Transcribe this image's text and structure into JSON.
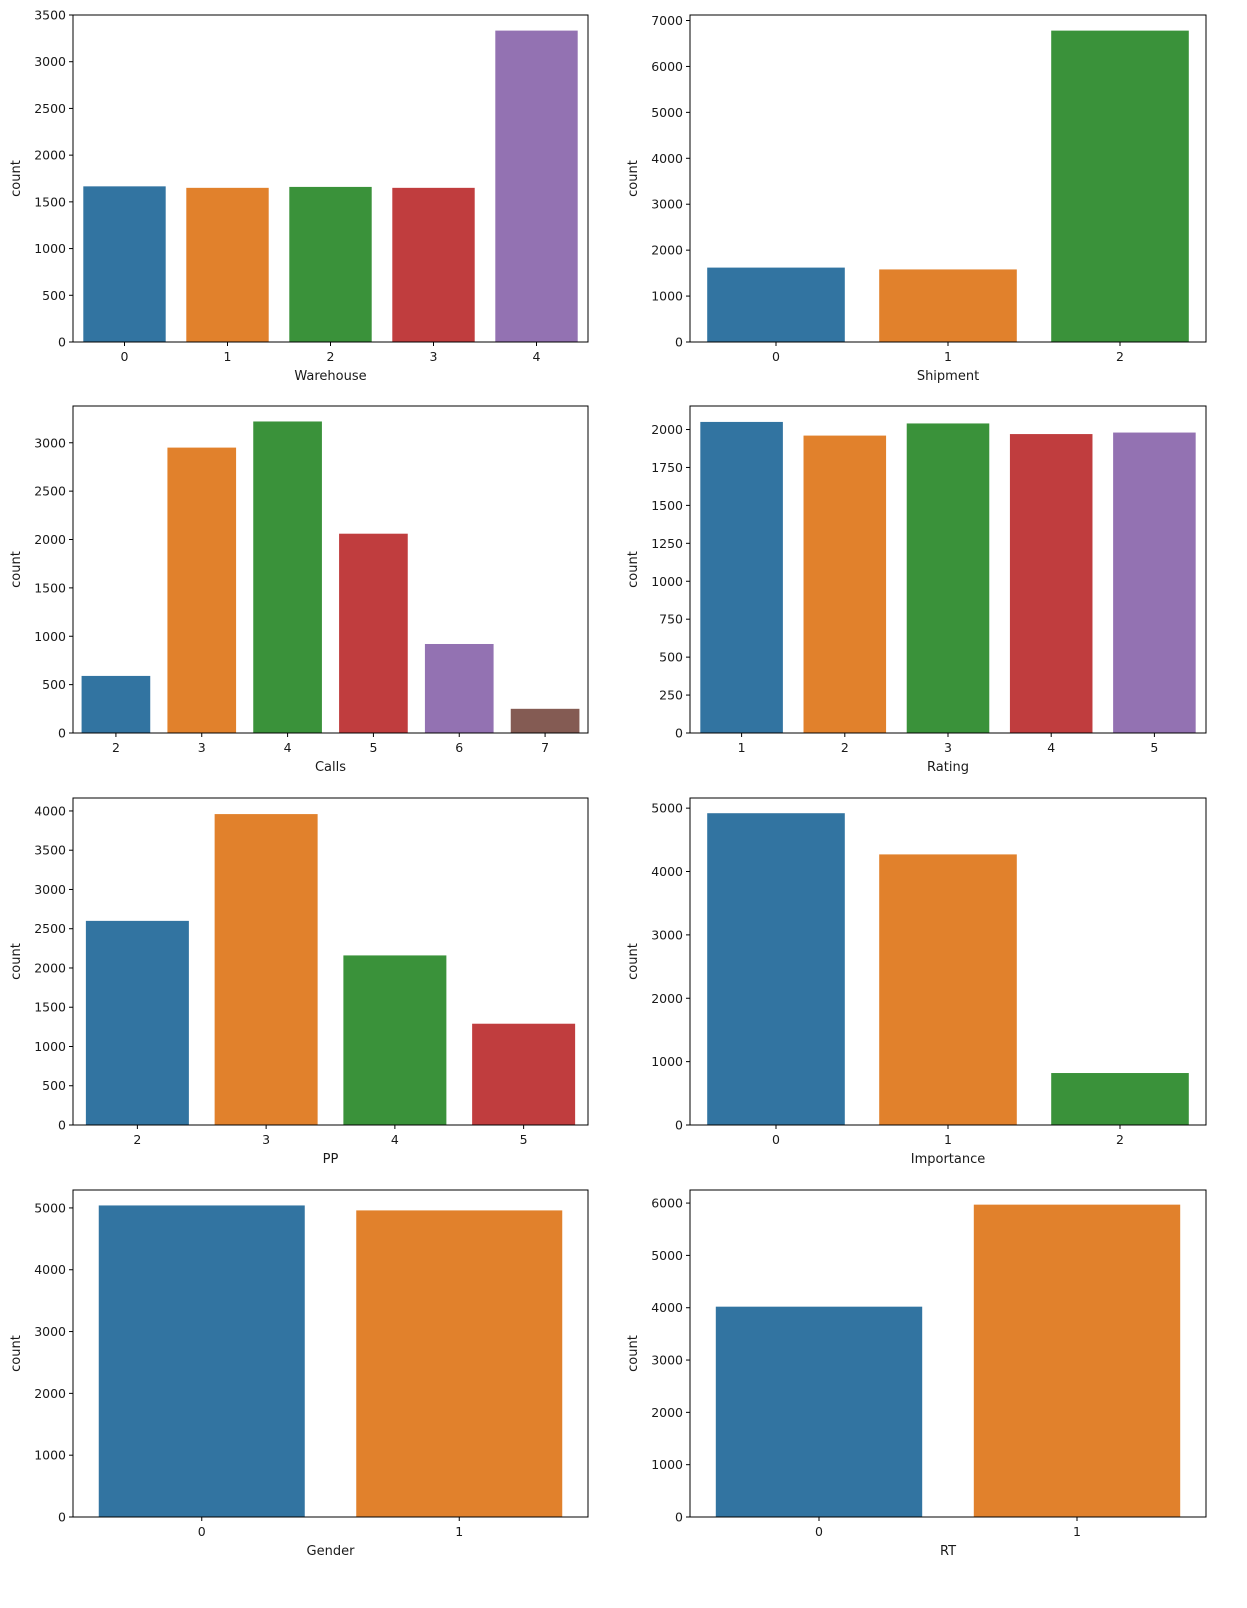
{
  "chart_data": [
    {
      "type": "bar",
      "title": "",
      "xlabel": "Warehouse",
      "ylabel": "count",
      "categories": [
        "0",
        "1",
        "2",
        "3",
        "4"
      ],
      "values": [
        1666,
        1650,
        1660,
        1650,
        3333
      ],
      "ylim": [
        0,
        3500
      ],
      "yticks": [
        0,
        500,
        1000,
        1500,
        2000,
        2500,
        3000,
        3500
      ],
      "grid": false,
      "colors": [
        "#3274a1",
        "#e1812c",
        "#3a923a",
        "#c03d3e",
        "#9372b2"
      ]
    },
    {
      "type": "bar",
      "title": "",
      "xlabel": "Shipment",
      "ylabel": "count",
      "categories": [
        "0",
        "1",
        "2"
      ],
      "values": [
        1620,
        1580,
        6780
      ],
      "ylim": [
        0,
        7120
      ],
      "yticks": [
        0,
        1000,
        2000,
        3000,
        4000,
        5000,
        6000,
        7000
      ],
      "grid": false,
      "colors": [
        "#3274a1",
        "#e1812c",
        "#3a923a"
      ]
    },
    {
      "type": "bar",
      "title": "",
      "xlabel": "Calls",
      "ylabel": "count",
      "categories": [
        "2",
        "3",
        "4",
        "5",
        "6",
        "7"
      ],
      "values": [
        590,
        2950,
        3220,
        2060,
        920,
        250
      ],
      "ylim": [
        0,
        3380
      ],
      "yticks": [
        0,
        500,
        1000,
        1500,
        2000,
        2500,
        3000
      ],
      "grid": false,
      "colors": [
        "#3274a1",
        "#e1812c",
        "#3a923a",
        "#c03d3e",
        "#9372b2",
        "#845b53"
      ]
    },
    {
      "type": "bar",
      "title": "",
      "xlabel": "Rating",
      "ylabel": "count",
      "categories": [
        "1",
        "2",
        "3",
        "4",
        "5"
      ],
      "values": [
        2050,
        1960,
        2040,
        1970,
        1980
      ],
      "ylim": [
        0,
        2155
      ],
      "yticks": [
        0,
        250,
        500,
        750,
        1000,
        1250,
        1500,
        1750,
        2000
      ],
      "grid": false,
      "colors": [
        "#3274a1",
        "#e1812c",
        "#3a923a",
        "#c03d3e",
        "#9372b2"
      ]
    },
    {
      "type": "bar",
      "title": "",
      "xlabel": "PP",
      "ylabel": "count",
      "categories": [
        "2",
        "3",
        "4",
        "5"
      ],
      "values": [
        2600,
        3960,
        2160,
        1290
      ],
      "ylim": [
        0,
        4165
      ],
      "yticks": [
        0,
        500,
        1000,
        1500,
        2000,
        2500,
        3000,
        3500,
        4000
      ],
      "grid": false,
      "colors": [
        "#3274a1",
        "#e1812c",
        "#3a923a",
        "#c03d3e"
      ]
    },
    {
      "type": "bar",
      "title": "",
      "xlabel": "Importance",
      "ylabel": "count",
      "categories": [
        "0",
        "1",
        "2"
      ],
      "values": [
        4920,
        4270,
        820
      ],
      "ylim": [
        0,
        5160
      ],
      "yticks": [
        0,
        1000,
        2000,
        3000,
        4000,
        5000
      ],
      "grid": false,
      "colors": [
        "#3274a1",
        "#e1812c",
        "#3a923a"
      ]
    },
    {
      "type": "bar",
      "title": "",
      "xlabel": "Gender",
      "ylabel": "count",
      "categories": [
        "0",
        "1"
      ],
      "values": [
        5040,
        4960
      ],
      "ylim": [
        0,
        5290
      ],
      "yticks": [
        0,
        1000,
        2000,
        3000,
        4000,
        5000
      ],
      "grid": false,
      "colors": [
        "#3274a1",
        "#e1812c"
      ]
    },
    {
      "type": "bar",
      "title": "",
      "xlabel": "RT",
      "ylabel": "count",
      "categories": [
        "0",
        "1"
      ],
      "values": [
        4020,
        5970
      ],
      "ylim": [
        0,
        6250
      ],
      "yticks": [
        0,
        1000,
        2000,
        3000,
        4000,
        5000,
        6000
      ],
      "grid": false,
      "colors": [
        "#3274a1",
        "#e1812c"
      ]
    }
  ]
}
